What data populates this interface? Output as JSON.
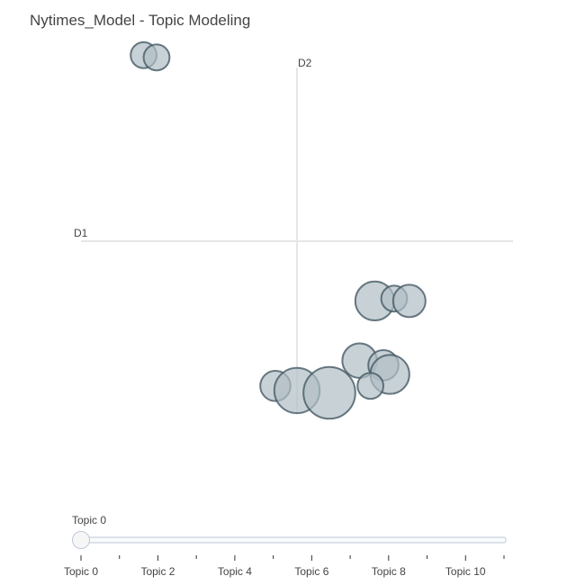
{
  "title": "Nytimes_Model - Topic Modeling",
  "chart_data": {
    "type": "scatter",
    "title": "Nytimes_Model - Topic Modeling",
    "xlabel": "D1",
    "ylabel": "D2",
    "xlim": [
      -10,
      10
    ],
    "ylim": [
      -12.5,
      8.5
    ],
    "grid": false,
    "points": [
      {
        "x": -7.1,
        "y": 6.1,
        "size": 0.6
      },
      {
        "x": -6.5,
        "y": 6.0,
        "size": 0.6
      },
      {
        "x": 3.6,
        "y": -4.6,
        "size": 0.9
      },
      {
        "x": 4.5,
        "y": -4.5,
        "size": 0.6
      },
      {
        "x": 5.2,
        "y": -4.6,
        "size": 0.75
      },
      {
        "x": 2.9,
        "y": -7.2,
        "size": 0.8
      },
      {
        "x": 4.0,
        "y": -7.4,
        "size": 0.7
      },
      {
        "x": 4.3,
        "y": -7.8,
        "size": 0.9
      },
      {
        "x": 3.4,
        "y": -8.3,
        "size": 0.6
      },
      {
        "x": -1.0,
        "y": -8.3,
        "size": 0.7
      },
      {
        "x": 0.0,
        "y": -8.5,
        "size": 1.05
      },
      {
        "x": 1.5,
        "y": -8.6,
        "size": 1.2
      }
    ],
    "axis_color": "#e6e6e6",
    "bubble_fill": "#b0bec5",
    "bubble_stroke": "#455a64"
  },
  "slider": {
    "current_label": "Topic 0",
    "ticks": [
      "Topic 0",
      "Topic 2",
      "Topic 4",
      "Topic 6",
      "Topic 8",
      "Topic 10"
    ],
    "value": 0,
    "count": 12
  }
}
